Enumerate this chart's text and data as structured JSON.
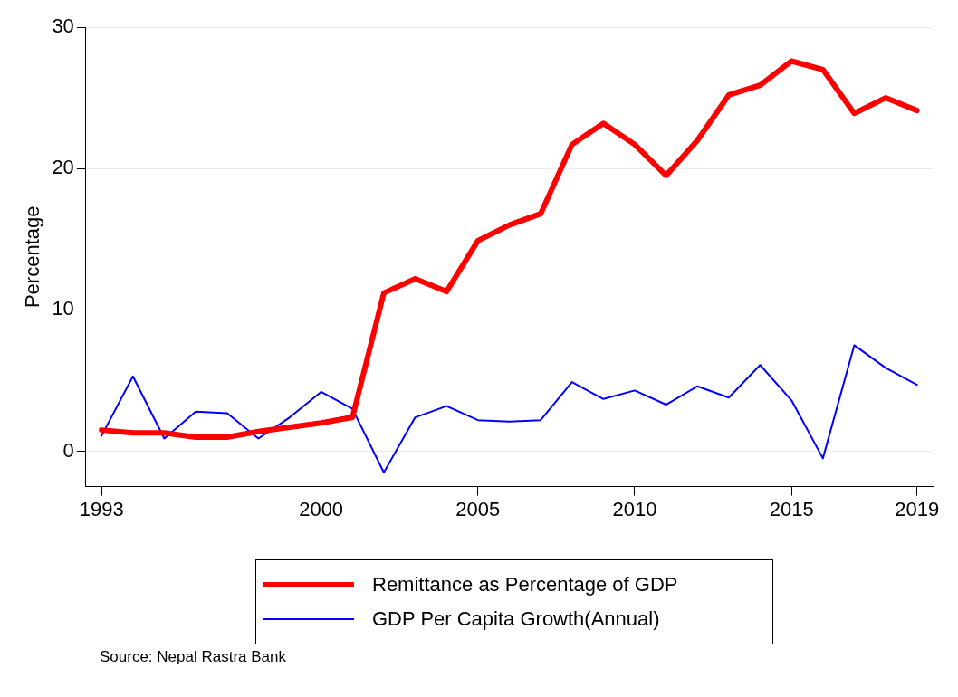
{
  "chart_data": {
    "type": "line",
    "ylabel": "Percentage",
    "x": [
      1993,
      1994,
      1995,
      1996,
      1997,
      1998,
      1999,
      2000,
      2001,
      2002,
      2003,
      2004,
      2005,
      2006,
      2007,
      2008,
      2009,
      2010,
      2011,
      2012,
      2013,
      2014,
      2015,
      2016,
      2017,
      2018,
      2019
    ],
    "series": [
      {
        "name": "Remittance as Percentage of GDP",
        "color": "#ff0000",
        "values": [
          1.5,
          1.3,
          1.3,
          1.0,
          1.0,
          1.4,
          1.7,
          2.0,
          2.4,
          11.2,
          12.2,
          11.3,
          14.9,
          16.0,
          16.8,
          21.7,
          23.2,
          21.7,
          19.5,
          22.0,
          25.2,
          25.9,
          27.6,
          27.0,
          23.9,
          25.0,
          24.1
        ]
      },
      {
        "name": "GDP Per Capita Growth(Annual)",
        "color": "#0000ff",
        "values": [
          1.1,
          5.3,
          0.9,
          2.8,
          2.7,
          0.9,
          2.4,
          4.2,
          3.0,
          -1.5,
          2.4,
          3.2,
          2.2,
          2.1,
          2.2,
          4.9,
          3.7,
          4.3,
          3.3,
          4.6,
          3.8,
          6.1,
          3.6,
          -0.5,
          7.5,
          5.9,
          4.7
        ]
      }
    ],
    "xlim": [
      1992.5,
      2019.5
    ],
    "xticks": [
      1993,
      2000,
      2005,
      2010,
      2015,
      2019
    ],
    "ylim": [
      -2.5,
      30
    ],
    "yticks": [
      0,
      10,
      20,
      30
    ],
    "grid": "y",
    "legend": "bottom",
    "marker": "none",
    "line_style": "solid",
    "annotations": [
      "Source: Nepal Rastra Bank"
    ]
  }
}
